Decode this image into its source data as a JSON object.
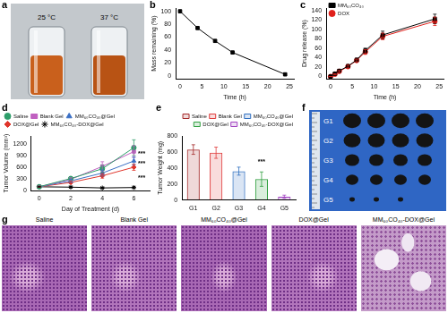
{
  "chart_data": [
    {
      "panel": "b",
      "type": "line",
      "xlabel": "Time (h)",
      "ylabel": "Mass remaining (%)",
      "x": [
        0,
        4,
        8,
        12,
        24
      ],
      "series": [
        {
          "color": "#000000",
          "marker": "square",
          "values": [
            100,
            74,
            54,
            36,
            2
          ]
        }
      ],
      "xlim": [
        -1,
        26
      ],
      "xticks": [
        0,
        5,
        10,
        15,
        20,
        25
      ],
      "ylim": [
        -5,
        105
      ],
      "yticks": [
        0,
        20,
        40,
        60,
        80,
        100
      ],
      "grid": false
    },
    {
      "panel": "c",
      "type": "line",
      "xlabel": "Time (h)",
      "ylabel": "Drug release (%)",
      "x": [
        0,
        1,
        2,
        4,
        6,
        8,
        12,
        24
      ],
      "series": [
        {
          "name": "MM₆₀CO₄₀",
          "color": "#000000",
          "marker": "square",
          "values": [
            0,
            6,
            12,
            22,
            35,
            55,
            88,
            122
          ],
          "errors": [
            0,
            1,
            2,
            3,
            4,
            5,
            8,
            10
          ]
        },
        {
          "name": "DOX",
          "color": "#e0201b",
          "marker": "circle",
          "values": [
            0,
            5,
            11,
            21,
            34,
            52,
            85,
            117
          ],
          "errors": [
            0,
            1,
            2,
            3,
            3,
            5,
            7,
            9
          ]
        }
      ],
      "xlim": [
        -1,
        26
      ],
      "xticks": [
        0,
        5,
        10,
        15,
        20,
        25
      ],
      "ylim": [
        -5,
        145
      ],
      "yticks": [
        0,
        20,
        40,
        60,
        80,
        100,
        120,
        140
      ],
      "grid": false,
      "legend": "upper left"
    },
    {
      "panel": "d",
      "type": "line",
      "xlabel": "Day of Treatment (d)",
      "ylabel": "Tumor Volume (mm³)",
      "x": [
        0,
        2,
        4,
        6
      ],
      "series": [
        {
          "name": "Saline",
          "color": "#2e9e6a",
          "marker": "circle",
          "values": [
            100,
            310,
            560,
            1100
          ],
          "errors": [
            15,
            50,
            90,
            200
          ]
        },
        {
          "name": "Blank Gel",
          "color": "#c060c0",
          "marker": "square",
          "values": [
            100,
            290,
            620,
            1000
          ],
          "errors": [
            15,
            40,
            120,
            150
          ]
        },
        {
          "name": "MM₆₀CO₄₀@Gel",
          "color": "#3a6fc4",
          "marker": "triangle",
          "values": [
            100,
            250,
            450,
            760
          ],
          "errors": [
            15,
            40,
            80,
            100
          ]
        },
        {
          "name": "DOX@Gel",
          "color": "#e0352b",
          "marker": "diamond",
          "values": [
            100,
            210,
            380,
            600
          ],
          "errors": [
            15,
            30,
            60,
            80
          ]
        },
        {
          "name": "MM₆₀CO₄₀-DOX@Gel",
          "color": "#000000",
          "marker": "star",
          "values": [
            100,
            90,
            70,
            80
          ],
          "errors": [
            10,
            20,
            15,
            20
          ]
        }
      ],
      "xlim": [
        -0.5,
        7
      ],
      "xticks": [
        0,
        2,
        4,
        6
      ],
      "ylim": [
        0,
        1400
      ],
      "yticks": [
        0,
        300,
        600,
        900,
        1200
      ],
      "grid": false,
      "legend": "upper left",
      "annotations": [
        {
          "text": "***",
          "x": 6.5,
          "y": 930
        },
        {
          "text": "***",
          "x": 6.5,
          "y": 680
        },
        {
          "text": "***",
          "x": 6.5,
          "y": 330
        }
      ]
    },
    {
      "panel": "e",
      "type": "bar",
      "ylabel": "Tumor Weight (mg)",
      "categories": [
        "G1",
        "G2",
        "G3",
        "G4",
        "G5"
      ],
      "series": [
        {
          "name": "Saline",
          "color": "#a52a2a",
          "values": [
            630,
            null,
            null,
            null,
            null
          ],
          "errors": [
            60,
            null,
            null,
            null,
            null
          ]
        },
        {
          "name": "Blank Gel",
          "color": "#e03c3c",
          "values": [
            null,
            590,
            null,
            null,
            null
          ],
          "errors": [
            null,
            70,
            null,
            null,
            null
          ]
        },
        {
          "name": "MM₆₀CO₄₀@Gel",
          "color": "#3070c0",
          "values": [
            null,
            null,
            360,
            null,
            null
          ],
          "errors": [
            null,
            null,
            50,
            null,
            null
          ]
        },
        {
          "name": "DOX@Gel",
          "color": "#30a040",
          "values": [
            null,
            null,
            null,
            260,
            null
          ],
          "errors": [
            null,
            null,
            null,
            90,
            null
          ]
        },
        {
          "name": "MM₆₀CO₄₀-DOX@Gel",
          "color": "#a040c0",
          "values": [
            null,
            null,
            null,
            null,
            40
          ],
          "errors": [
            null,
            null,
            null,
            null,
            20
          ]
        }
      ],
      "ylim": [
        0,
        800
      ],
      "yticks": [
        0,
        200,
        400,
        600,
        800
      ],
      "grid": false,
      "legend": "upper right",
      "annotations": [
        {
          "text": "***",
          "x": "G4",
          "y": 470
        }
      ]
    }
  ],
  "photos": [
    {
      "panel": "a",
      "labels": [
        "25 °C",
        "37 °C"
      ]
    },
    {
      "panel": "f",
      "labels": [
        "G1",
        "G2",
        "G3",
        "G4",
        "G5"
      ]
    },
    {
      "panel": "g",
      "labels": [
        "Saline",
        "Blank Gel",
        "MM₆₀CO₄₀@Gel",
        "DOX@Gel",
        "MM₆₀CO₄₀-DOX@Gel"
      ]
    }
  ]
}
